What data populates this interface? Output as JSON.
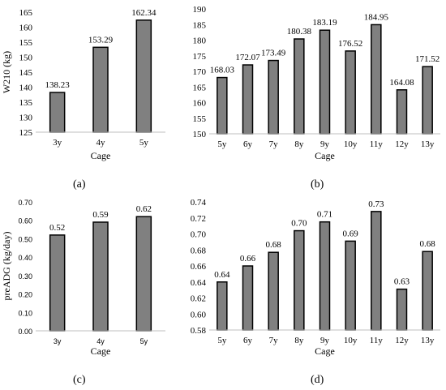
{
  "chart_data": [
    {
      "type": "bar",
      "panel": "(a)",
      "title": "",
      "xlabel": "Cage",
      "ylabel": "W210 (kg)",
      "ylim": [
        125,
        165
      ],
      "yticks": [
        125,
        130,
        135,
        140,
        145,
        150,
        155,
        160,
        165
      ],
      "ytick_labels": [
        "125",
        "130",
        "135",
        "140",
        "145",
        "150",
        "155",
        "160",
        "165"
      ],
      "categories": [
        "3y",
        "4y",
        "5y"
      ],
      "values": [
        138.23,
        153.29,
        162.34
      ],
      "value_labels": [
        "138.23",
        "153.29",
        "162.34"
      ],
      "bar_color": "#808080",
      "grid": false
    },
    {
      "type": "bar",
      "panel": "(b)",
      "title": "",
      "xlabel": "Cage",
      "ylabel": "",
      "ylim": [
        150,
        190
      ],
      "yticks": [
        150,
        155,
        160,
        165,
        170,
        175,
        180,
        185,
        190
      ],
      "ytick_labels": [
        "150",
        "155",
        "160",
        "165",
        "170",
        "175",
        "180",
        "185",
        "190"
      ],
      "categories": [
        "5y",
        "6y",
        "7y",
        "8y",
        "9y",
        "10y",
        "11y",
        "12y",
        "13y"
      ],
      "values": [
        168.03,
        172.07,
        173.49,
        180.38,
        183.19,
        176.52,
        184.95,
        164.08,
        171.52
      ],
      "value_labels": [
        "168.03",
        "172.07",
        "173.49",
        "180.38",
        "183.19",
        "176.52",
        "184.95",
        "164.08",
        "171.52"
      ],
      "bar_color": "#808080",
      "grid": false
    },
    {
      "type": "bar",
      "panel": "(c)",
      "title": "",
      "xlabel": "Cage",
      "ylabel": "preADG (kg/day)",
      "ylim": [
        0,
        0.7
      ],
      "yticks": [
        0,
        0.1,
        0.2,
        0.3,
        0.4,
        0.5,
        0.6,
        0.7
      ],
      "ytick_labels": [
        "0.00",
        "0.10",
        "0.20",
        "0.30",
        "0.40",
        "0.50",
        "0.60",
        "0.70"
      ],
      "categories": [
        "3y",
        "4y",
        "5y"
      ],
      "values": [
        0.52,
        0.59,
        0.62
      ],
      "value_labels": [
        "0.52",
        "0.59",
        "0.62"
      ],
      "bar_color": "#808080",
      "grid": false
    },
    {
      "type": "bar",
      "panel": "(d)",
      "title": "",
      "xlabel": "Cage",
      "ylabel": "",
      "ylim": [
        0.58,
        0.74
      ],
      "yticks": [
        0.58,
        0.6,
        0.62,
        0.64,
        0.66,
        0.68,
        0.7,
        0.72,
        0.74
      ],
      "ytick_labels": [
        "0.58",
        "0.60",
        "0.62",
        "0.64",
        "0.66",
        "0.68",
        "0.70",
        "0.72",
        "0.74"
      ],
      "categories": [
        "5y",
        "6y",
        "7y",
        "8y",
        "9y",
        "10y",
        "11y",
        "12y",
        "13y"
      ],
      "values": [
        0.64,
        0.66,
        0.677,
        0.704,
        0.715,
        0.691,
        0.728,
        0.631,
        0.678
      ],
      "value_labels": [
        "0.64",
        "0.66",
        "0.68",
        "0.70",
        "0.71",
        "0.69",
        "0.73",
        "0.63",
        "0.68"
      ],
      "bar_color": "#808080",
      "grid": false
    }
  ]
}
